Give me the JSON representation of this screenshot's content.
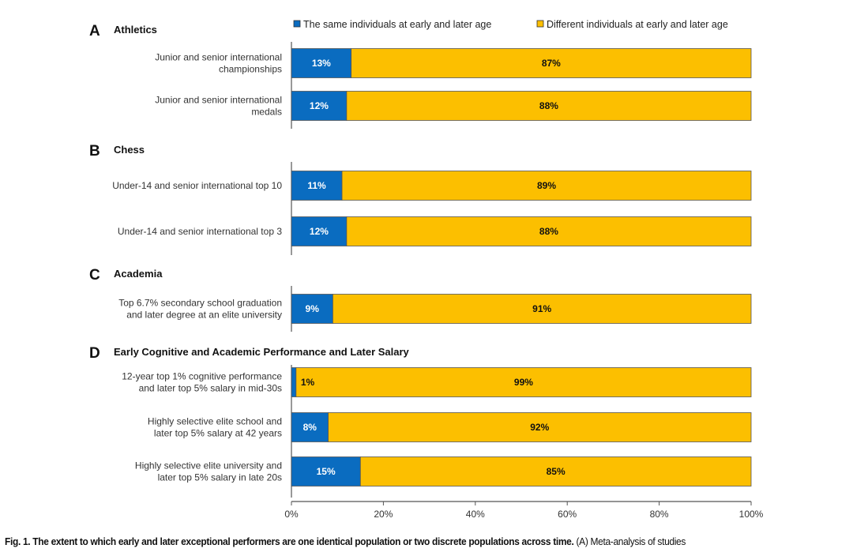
{
  "chart_data": {
    "type": "bar",
    "orientation": "horizontal-stacked-100",
    "xlim": [
      0,
      100
    ],
    "x_ticks": [
      "0%",
      "20%",
      "40%",
      "60%",
      "80%",
      "100%"
    ],
    "x_tick_values": [
      0,
      20,
      40,
      60,
      80,
      100
    ],
    "legend": {
      "placement": "top",
      "entries": [
        {
          "name": "The same individuals at early and later age",
          "color": "#0a6cc0"
        },
        {
          "name": "Different individuals at early and later age",
          "color": "#fcbf00"
        }
      ]
    },
    "sections": [
      {
        "letter": "A",
        "title": "Athletics",
        "categories": [
          {
            "label": [
              "Junior and senior international",
              "championships"
            ],
            "same": 13,
            "different": 87,
            "same_label": "13%",
            "different_label": "87%"
          },
          {
            "label": [
              "Junior and senior international",
              "medals"
            ],
            "same": 12,
            "different": 88,
            "same_label": "12%",
            "different_label": "88%"
          }
        ]
      },
      {
        "letter": "B",
        "title": "Chess",
        "categories": [
          {
            "label": [
              "Under-14 and senior international top 10"
            ],
            "same": 11,
            "different": 89,
            "same_label": "11%",
            "different_label": "89%"
          },
          {
            "label": [
              "Under-14 and senior international top 3"
            ],
            "same": 12,
            "different": 88,
            "same_label": "12%",
            "different_label": "88%"
          }
        ]
      },
      {
        "letter": "C",
        "title": "Academia",
        "categories": [
          {
            "label": [
              "Top 6.7% secondary school graduation",
              "and later degree at an elite university"
            ],
            "same": 9,
            "different": 91,
            "same_label": "9%",
            "different_label": "91%"
          }
        ]
      },
      {
        "letter": "D",
        "title": "Early Cognitive and Academic Performance and Later Salary",
        "categories": [
          {
            "label": [
              "12-year top 1% cognitive performance",
              "and later top 5% salary in mid-30s"
            ],
            "same": 1,
            "different": 99,
            "same_label": "1%",
            "different_label": "99%"
          },
          {
            "label": [
              "Highly selective elite school and",
              "later top 5% salary at 42 years"
            ],
            "same": 8,
            "different": 92,
            "same_label": "8%",
            "different_label": "92%"
          },
          {
            "label": [
              "Highly selective elite university and",
              "later top 5% salary in late 20s"
            ],
            "same": 15,
            "different": 85,
            "same_label": "15%",
            "different_label": "85%"
          }
        ]
      }
    ],
    "colors": {
      "same": "#0a6cc0",
      "different": "#fcbf00",
      "bar_edge": "#555555",
      "axis": "#555555"
    }
  },
  "caption": {
    "bold": "Fig. 1. The extent to which early and later exceptional performers are one identical population or two discrete populations across time.",
    "rest": " (A) Meta-analysis of studies"
  }
}
